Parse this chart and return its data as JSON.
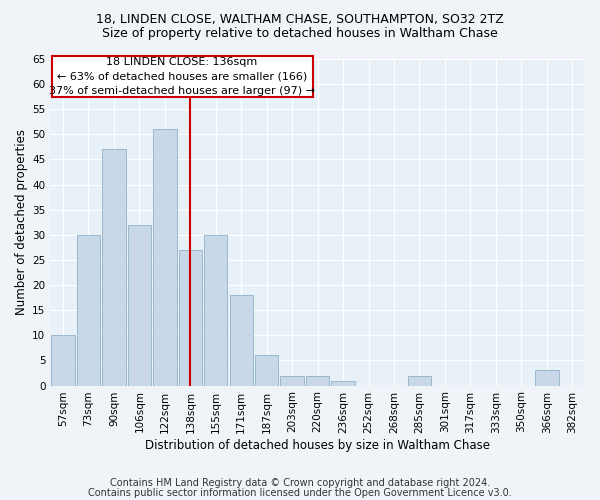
{
  "title1": "18, LINDEN CLOSE, WALTHAM CHASE, SOUTHAMPTON, SO32 2TZ",
  "title2": "Size of property relative to detached houses in Waltham Chase",
  "xlabel": "Distribution of detached houses by size in Waltham Chase",
  "ylabel": "Number of detached properties",
  "categories": [
    "57sqm",
    "73sqm",
    "90sqm",
    "106sqm",
    "122sqm",
    "138sqm",
    "155sqm",
    "171sqm",
    "187sqm",
    "203sqm",
    "220sqm",
    "236sqm",
    "252sqm",
    "268sqm",
    "285sqm",
    "301sqm",
    "317sqm",
    "333sqm",
    "350sqm",
    "366sqm",
    "382sqm"
  ],
  "values": [
    10,
    30,
    47,
    32,
    51,
    27,
    30,
    18,
    6,
    2,
    2,
    1,
    0,
    0,
    2,
    0,
    0,
    0,
    0,
    3,
    0
  ],
  "bar_color": "#c8d8e8",
  "bar_edge_color": "#9ab8cc",
  "vline_color": "#cc0000",
  "annotation_box_text": "18 LINDEN CLOSE: 136sqm\n← 63% of detached houses are smaller (166)\n37% of semi-detached houses are larger (97) →",
  "ylim": [
    0,
    65
  ],
  "yticks": [
    0,
    5,
    10,
    15,
    20,
    25,
    30,
    35,
    40,
    45,
    50,
    55,
    60,
    65
  ],
  "footer1": "Contains HM Land Registry data © Crown copyright and database right 2024.",
  "footer2": "Contains public sector information licensed under the Open Government Licence v3.0.",
  "fig_bg_color": "#f0f4f8",
  "plot_bg_color": "#e8f0f8",
  "title1_fontsize": 9,
  "title2_fontsize": 9,
  "xlabel_fontsize": 8.5,
  "ylabel_fontsize": 8.5,
  "tick_fontsize": 7.5,
  "footer_fontsize": 7,
  "annot_fontsize": 8
}
